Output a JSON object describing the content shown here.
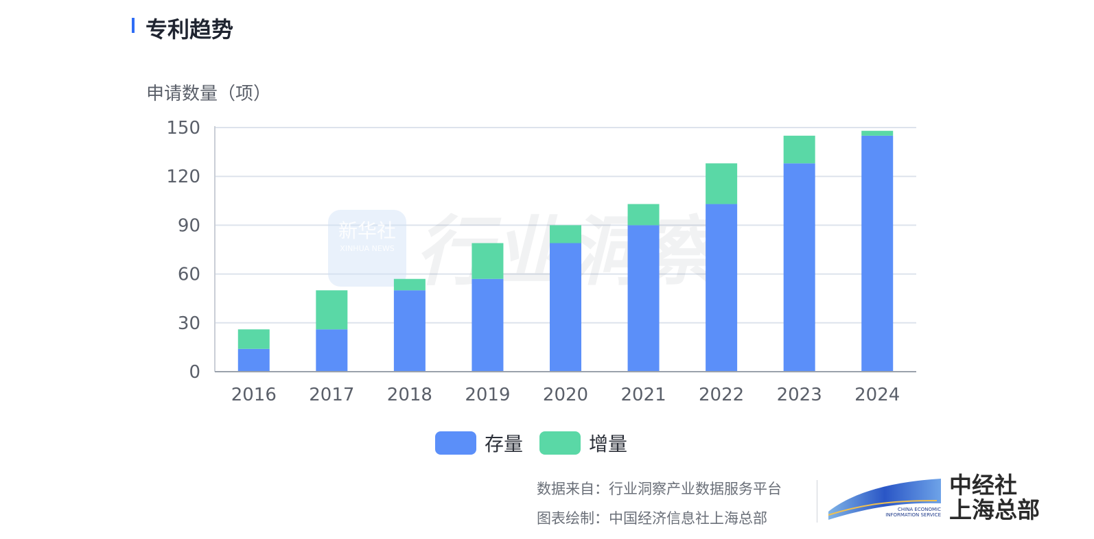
{
  "page": {
    "title": "专利趋势"
  },
  "chart_data": {
    "type": "bar",
    "stacked": true,
    "ylabel": "申请数量（项）",
    "ylim": [
      0,
      150
    ],
    "yticks": [
      0,
      30,
      60,
      90,
      120,
      150
    ],
    "grid": true,
    "categories": [
      "2016",
      "2017",
      "2018",
      "2019",
      "2020",
      "2021",
      "2022",
      "2023",
      "2024"
    ],
    "series": [
      {
        "name": "存量",
        "color": "#5b8ff9",
        "values": [
          14,
          26,
          50,
          57,
          79,
          90,
          103,
          128,
          145
        ]
      },
      {
        "name": "增量",
        "color": "#5ad8a6",
        "values": [
          12,
          24,
          7,
          22,
          11,
          13,
          25,
          17,
          3
        ]
      }
    ],
    "legend_position": "bottom"
  },
  "watermark": {
    "logo_cn": "新华社",
    "logo_en": "XINHUA NEWS",
    "text": "行业洞察"
  },
  "source": {
    "data_line": "数据来自：行业洞察产业数据服务平台",
    "chart_line": "图表绘制：中国经济信息社上海总部"
  },
  "brand": {
    "line1": "中经社",
    "line2": "上海总部",
    "en1": "CHINA ECONOMIC",
    "en2": "INFORMATION SERVICE"
  }
}
